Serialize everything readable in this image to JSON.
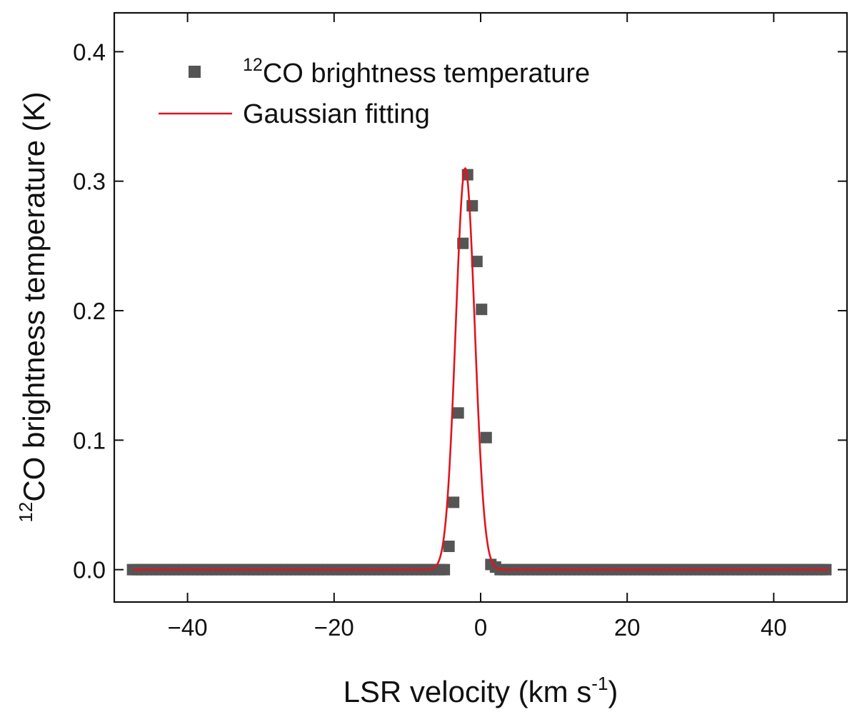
{
  "chart_data": {
    "type": "scatter",
    "title": "",
    "xlabel": "LSR velocity (km s",
    "xlabel_sup": "-1",
    "xlabel_suffix": ")",
    "ylabel_sup": "12",
    "ylabel": "CO brightness temperature (K)",
    "xlim": [
      -50,
      50
    ],
    "ylim": [
      -0.025,
      0.43
    ],
    "xticks": [
      -40,
      -20,
      0,
      20,
      40
    ],
    "xtick_labels": [
      "−40",
      "−20",
      "0",
      "20",
      "40"
    ],
    "yticks": [
      0.0,
      0.1,
      0.2,
      0.3,
      0.4
    ],
    "ytick_labels": [
      "0.0",
      "0.1",
      "0.2",
      "0.3",
      "0.4"
    ],
    "grid": false,
    "legend_position": "top-left",
    "series": [
      {
        "name": "CO brightness temperature",
        "name_sup": "12",
        "kind": "scatter",
        "color": "#555555",
        "marker": "square",
        "x_start": -47.5,
        "x_step": 0.635,
        "values": [
          0.0,
          0.0,
          0.0,
          0.0,
          0.0,
          0.0,
          0.0,
          0.0,
          0.0,
          0.0,
          0.0,
          0.0,
          0.0,
          0.0,
          0.0,
          0.0,
          0.0,
          0.0,
          0.0,
          0.0,
          0.0,
          0.0,
          0.0,
          0.0,
          0.0,
          0.0,
          0.0,
          0.0,
          0.0,
          0.0,
          0.0,
          0.0,
          0.0,
          0.0,
          0.0,
          0.0,
          0.0,
          0.0,
          0.0,
          0.0,
          0.0,
          0.0,
          0.0,
          0.0,
          0.0,
          0.0,
          0.0,
          0.0,
          0.0,
          0.0,
          0.0,
          0.0,
          0.0,
          0.0,
          0.0,
          0.0,
          0.0,
          0.0,
          0.0,
          0.0,
          0.0,
          0.0,
          0.0,
          0.0,
          0.0,
          0.0,
          0.0,
          0.0,
          0.018,
          0.052,
          0.121,
          0.252,
          0.305,
          0.281,
          0.238,
          0.201,
          0.102,
          0.004,
          0.002,
          0.0,
          0.0,
          0.0,
          0.0,
          0.0,
          0.0,
          0.0,
          0.0,
          0.0,
          0.0,
          0.0,
          0.0,
          0.0,
          0.0,
          0.0,
          0.0,
          0.0,
          0.0,
          0.0,
          0.0,
          0.0,
          0.0,
          0.0,
          0.0,
          0.0,
          0.0,
          0.0,
          0.0,
          0.0,
          0.0,
          0.0,
          0.0,
          0.0,
          0.0,
          0.0,
          0.0,
          0.0,
          0.0,
          0.0,
          0.0,
          0.0,
          0.0,
          0.0,
          0.0,
          0.0,
          0.0,
          0.0,
          0.0,
          0.0,
          0.0,
          0.0,
          0.0,
          0.0,
          0.0,
          0.0,
          0.0,
          0.0,
          0.0,
          0.0,
          0.0,
          0.0,
          0.0,
          0.0,
          0.0,
          0.0,
          0.0,
          0.0,
          0.0,
          0.0,
          0.0,
          0.0
        ]
      },
      {
        "name": "Gaussian fitting",
        "kind": "line",
        "color": "#e0141e",
        "amplitude": 0.31,
        "center": -2.1,
        "sigma": 1.3,
        "offset": 0.0,
        "x_range": [
          -47.5,
          47.5
        ]
      }
    ]
  }
}
